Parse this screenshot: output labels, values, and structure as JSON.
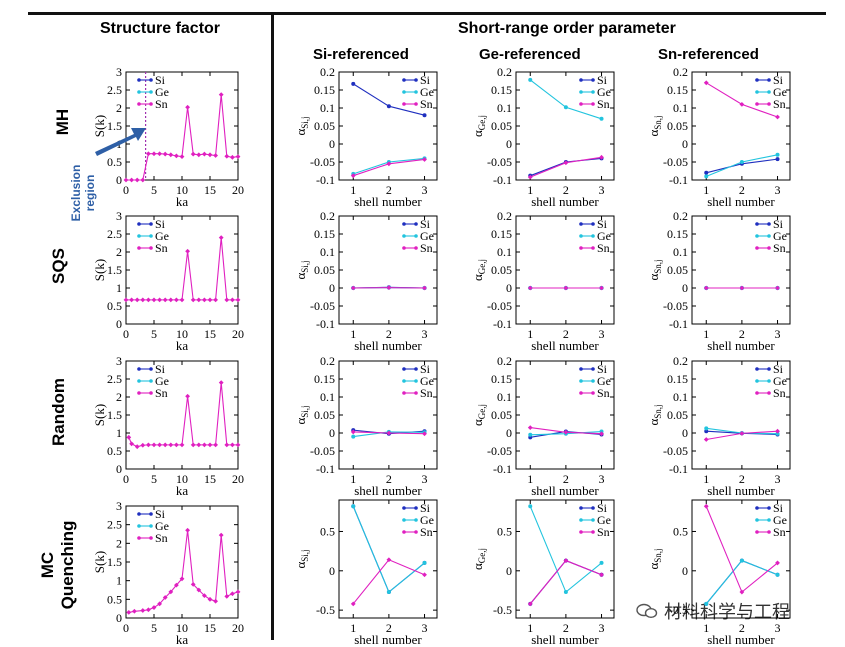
{
  "headers": {
    "structure_factor": "Structure factor",
    "sro": "Short-range order parameter",
    "si_ref": "Si-referenced",
    "ge_ref": "Ge-referenced",
    "sn_ref": "Sn-referenced"
  },
  "rows": [
    "MH",
    "SQS",
    "Random",
    "MC\nQuenching"
  ],
  "exclusion_region": "Exclusion\nregion",
  "watermark": "材料科学与工程",
  "colors": {
    "Si": "#1f2fbf",
    "Ge": "#22c4de",
    "Sn": "#e020c0",
    "exclusion": "#a030b0",
    "arrow": "#2e5fa6"
  },
  "chart_data": [
    {
      "id": "sf-mh",
      "type": "line",
      "xlabel": "ka",
      "ylabel": "S(k)",
      "xlim": [
        0,
        20
      ],
      "ylim": [
        0,
        3
      ],
      "xticks": [
        "0",
        "5",
        "10",
        "15",
        "20"
      ],
      "yticks": [
        "0",
        "0.5",
        "1",
        "1.5",
        "2",
        "2.5",
        "3"
      ],
      "legend": [
        "Si",
        "Ge",
        "Sn"
      ],
      "exclusion_x": 3.5,
      "series": [
        {
          "name": "Sn",
          "x": [
            0,
            1,
            2,
            3,
            4,
            5,
            6,
            7,
            8,
            9,
            10,
            11,
            12,
            13,
            14,
            15,
            16,
            17,
            18,
            19,
            20
          ],
          "y": [
            0,
            0,
            0,
            0,
            0.73,
            0.73,
            0.73,
            0.72,
            0.7,
            0.67,
            0.65,
            2.02,
            0.72,
            0.7,
            0.72,
            0.7,
            0.68,
            2.37,
            0.66,
            0.63,
            0.65
          ]
        }
      ]
    },
    {
      "id": "sf-sqs",
      "type": "line",
      "xlabel": "ka",
      "ylabel": "S(k)",
      "xlim": [
        0,
        20
      ],
      "ylim": [
        0,
        3
      ],
      "xticks": [
        "0",
        "5",
        "10",
        "15",
        "20"
      ],
      "yticks": [
        "0",
        "0.5",
        "1",
        "1.5",
        "2",
        "2.5",
        "3"
      ],
      "legend": [
        "Si",
        "Ge",
        "Sn"
      ],
      "series": [
        {
          "name": "Sn",
          "x": [
            0,
            1,
            2,
            3,
            4,
            5,
            6,
            7,
            8,
            9,
            10,
            11,
            12,
            13,
            14,
            15,
            16,
            17,
            18,
            19,
            20
          ],
          "y": [
            0.67,
            0.67,
            0.67,
            0.67,
            0.67,
            0.67,
            0.67,
            0.67,
            0.67,
            0.67,
            0.67,
            2.02,
            0.67,
            0.67,
            0.67,
            0.67,
            0.67,
            2.4,
            0.67,
            0.67,
            0.67
          ]
        }
      ]
    },
    {
      "id": "sf-random",
      "type": "line",
      "xlabel": "ka",
      "ylabel": "S(k)",
      "xlim": [
        0,
        20
      ],
      "ylim": [
        0,
        3
      ],
      "xticks": [
        "0",
        "5",
        "10",
        "15",
        "20"
      ],
      "yticks": [
        "0",
        "0.5",
        "1",
        "1.5",
        "2",
        "2.5",
        "3"
      ],
      "legend": [
        "Si",
        "Ge",
        "Sn"
      ],
      "series": [
        {
          "name": "Sn",
          "x": [
            0.5,
            1,
            2,
            3,
            4,
            5,
            6,
            7,
            8,
            9,
            10,
            11,
            12,
            13,
            14,
            15,
            16,
            17,
            18,
            19,
            20
          ],
          "y": [
            0.88,
            0.7,
            0.62,
            0.66,
            0.67,
            0.67,
            0.67,
            0.67,
            0.67,
            0.67,
            0.67,
            2.02,
            0.67,
            0.67,
            0.67,
            0.67,
            0.67,
            2.4,
            0.67,
            0.67,
            0.67
          ]
        }
      ]
    },
    {
      "id": "sf-mc",
      "type": "line",
      "xlabel": "ka",
      "ylabel": "S(k)",
      "xlim": [
        0,
        20
      ],
      "ylim": [
        0,
        3
      ],
      "xticks": [
        "0",
        "5",
        "10",
        "15",
        "20"
      ],
      "yticks": [
        "0",
        "0.5",
        "1",
        "1.5",
        "2",
        "2.5",
        "3"
      ],
      "legend": [
        "Si",
        "Ge",
        "Sn"
      ],
      "series": [
        {
          "name": "Sn",
          "x": [
            0.5,
            1.5,
            3,
            4,
            5,
            6,
            7,
            8,
            9,
            10,
            11,
            12,
            13,
            14,
            15,
            16,
            17,
            18,
            19,
            20
          ],
          "y": [
            0.15,
            0.18,
            0.2,
            0.22,
            0.28,
            0.38,
            0.55,
            0.7,
            0.88,
            1.05,
            2.35,
            0.9,
            0.75,
            0.6,
            0.5,
            0.45,
            2.22,
            0.58,
            0.65,
            0.7
          ]
        }
      ]
    },
    {
      "id": "sro-mh-si",
      "type": "line",
      "xlabel": "shell number",
      "ylabel": "α",
      "ysub": "Si,j",
      "xlim": [
        0.6,
        3.35
      ],
      "ylim": [
        -0.1,
        0.2
      ],
      "xticks": [
        "1",
        "2",
        "3"
      ],
      "yticks": [
        "-0.1",
        "-0.05",
        "0",
        "0.05",
        "0.1",
        "0.15",
        "0.2"
      ],
      "legend": [
        "Si",
        "Ge",
        "Sn"
      ],
      "series": [
        {
          "name": "Si",
          "x": [
            1,
            2,
            3
          ],
          "y": [
            0.167,
            0.105,
            0.08
          ]
        },
        {
          "name": "Ge",
          "x": [
            1,
            2,
            3
          ],
          "y": [
            -0.083,
            -0.05,
            -0.04
          ]
        },
        {
          "name": "Sn",
          "x": [
            1,
            2,
            3
          ],
          "y": [
            -0.088,
            -0.055,
            -0.043
          ]
        }
      ]
    },
    {
      "id": "sro-mh-ge",
      "type": "line",
      "xlabel": "shell number",
      "ylabel": "α",
      "ysub": "Ge,j",
      "xlim": [
        0.6,
        3.35
      ],
      "ylim": [
        -0.1,
        0.2
      ],
      "xticks": [
        "1",
        "2",
        "3"
      ],
      "yticks": [
        "-0.1",
        "-0.05",
        "0",
        "0.05",
        "0.1",
        "0.15",
        "0.2"
      ],
      "legend": [
        "Si",
        "Ge",
        "Sn"
      ],
      "series": [
        {
          "name": "Si",
          "x": [
            1,
            2,
            3
          ],
          "y": [
            -0.088,
            -0.05,
            -0.04
          ]
        },
        {
          "name": "Ge",
          "x": [
            1,
            2,
            3
          ],
          "y": [
            0.178,
            0.102,
            0.07
          ]
        },
        {
          "name": "Sn",
          "x": [
            1,
            2,
            3
          ],
          "y": [
            -0.092,
            -0.052,
            -0.037
          ]
        }
      ]
    },
    {
      "id": "sro-mh-sn",
      "type": "line",
      "xlabel": "shell number",
      "ylabel": "α",
      "ysub": "Sn,j",
      "xlim": [
        0.6,
        3.35
      ],
      "ylim": [
        -0.1,
        0.2
      ],
      "xticks": [
        "1",
        "2",
        "3"
      ],
      "yticks": [
        "-0.1",
        "-0.05",
        "0",
        "0.05",
        "0.1",
        "0.15",
        "0.2"
      ],
      "legend": [
        "Si",
        "Ge",
        "Sn"
      ],
      "series": [
        {
          "name": "Si",
          "x": [
            1,
            2,
            3
          ],
          "y": [
            -0.08,
            -0.055,
            -0.042
          ]
        },
        {
          "name": "Ge",
          "x": [
            1,
            2,
            3
          ],
          "y": [
            -0.09,
            -0.05,
            -0.03
          ]
        },
        {
          "name": "Sn",
          "x": [
            1,
            2,
            3
          ],
          "y": [
            0.17,
            0.11,
            0.075
          ]
        }
      ]
    },
    {
      "id": "sro-sqs-si",
      "type": "line",
      "xlabel": "shell number",
      "ylabel": "α",
      "ysub": "Si,j",
      "xlim": [
        0.6,
        3.35
      ],
      "ylim": [
        -0.1,
        0.2
      ],
      "xticks": [
        "1",
        "2",
        "3"
      ],
      "yticks": [
        "-0.1",
        "-0.05",
        "0",
        "0.05",
        "0.1",
        "0.15",
        "0.2"
      ],
      "legend": [
        "Si",
        "Ge",
        "Sn"
      ],
      "series": [
        {
          "name": "Si",
          "x": [
            1,
            2,
            3
          ],
          "y": [
            0,
            0.002,
            0
          ]
        },
        {
          "name": "Ge",
          "x": [
            1,
            2,
            3
          ],
          "y": [
            0,
            0.001,
            0
          ]
        },
        {
          "name": "Sn",
          "x": [
            1,
            2,
            3
          ],
          "y": [
            0,
            0.001,
            0
          ]
        }
      ]
    },
    {
      "id": "sro-sqs-ge",
      "type": "line",
      "xlabel": "shell number",
      "ylabel": "α",
      "ysub": "Ge,j",
      "xlim": [
        0.6,
        3.35
      ],
      "ylim": [
        -0.1,
        0.2
      ],
      "xticks": [
        "1",
        "2",
        "3"
      ],
      "yticks": [
        "-0.1",
        "-0.05",
        "0",
        "0.05",
        "0.1",
        "0.15",
        "0.2"
      ],
      "legend": [
        "Si",
        "Ge",
        "Sn"
      ],
      "series": [
        {
          "name": "Si",
          "x": [
            1,
            2,
            3
          ],
          "y": [
            0,
            0,
            0
          ]
        },
        {
          "name": "Ge",
          "x": [
            1,
            2,
            3
          ],
          "y": [
            0,
            0,
            0
          ]
        },
        {
          "name": "Sn",
          "x": [
            1,
            2,
            3
          ],
          "y": [
            0,
            0,
            0
          ]
        }
      ]
    },
    {
      "id": "sro-sqs-sn",
      "type": "line",
      "xlabel": "shell number",
      "ylabel": "α",
      "ysub": "Sn,j",
      "xlim": [
        0.6,
        3.35
      ],
      "ylim": [
        -0.1,
        0.2
      ],
      "xticks": [
        "1",
        "2",
        "3"
      ],
      "yticks": [
        "-0.1",
        "-0.05",
        "0",
        "0.05",
        "0.1",
        "0.15",
        "0.2"
      ],
      "legend": [
        "Si",
        "Ge",
        "Sn"
      ],
      "series": [
        {
          "name": "Si",
          "x": [
            1,
            2,
            3
          ],
          "y": [
            0,
            0,
            0
          ]
        },
        {
          "name": "Ge",
          "x": [
            1,
            2,
            3
          ],
          "y": [
            0,
            0,
            0
          ]
        },
        {
          "name": "Sn",
          "x": [
            1,
            2,
            3
          ],
          "y": [
            0,
            0,
            0
          ]
        }
      ]
    },
    {
      "id": "sro-rand-si",
      "type": "line",
      "xlabel": "shell number",
      "ylabel": "α",
      "ysub": "Si,j",
      "xlim": [
        0.6,
        3.35
      ],
      "ylim": [
        -0.1,
        0.2
      ],
      "xticks": [
        "1",
        "2",
        "3"
      ],
      "yticks": [
        "-0.1",
        "-0.05",
        "0",
        "0.05",
        "0.1",
        "0.15",
        "0.2"
      ],
      "legend": [
        "Si",
        "Ge",
        "Sn"
      ],
      "series": [
        {
          "name": "Si",
          "x": [
            1,
            2,
            3
          ],
          "y": [
            0.008,
            -0.002,
            0.005
          ]
        },
        {
          "name": "Ge",
          "x": [
            1,
            2,
            3
          ],
          "y": [
            -0.01,
            0.003,
            0.002
          ]
        },
        {
          "name": "Sn",
          "x": [
            1,
            2,
            3
          ],
          "y": [
            0.003,
            0.0,
            -0.002
          ]
        }
      ]
    },
    {
      "id": "sro-rand-ge",
      "type": "line",
      "xlabel": "shell number",
      "ylabel": "α",
      "ysub": "Ge,j",
      "xlim": [
        0.6,
        3.35
      ],
      "ylim": [
        -0.1,
        0.2
      ],
      "xticks": [
        "1",
        "2",
        "3"
      ],
      "yticks": [
        "-0.1",
        "-0.05",
        "0",
        "0.05",
        "0.1",
        "0.15",
        "0.2"
      ],
      "legend": [
        "Si",
        "Ge",
        "Sn"
      ],
      "series": [
        {
          "name": "Si",
          "x": [
            1,
            2,
            3
          ],
          "y": [
            -0.012,
            0.004,
            -0.004
          ]
        },
        {
          "name": "Ge",
          "x": [
            1,
            2,
            3
          ],
          "y": [
            -0.005,
            -0.002,
            0.004
          ]
        },
        {
          "name": "Sn",
          "x": [
            1,
            2,
            3
          ],
          "y": [
            0.015,
            0.002,
            -0.002
          ]
        }
      ]
    },
    {
      "id": "sro-rand-sn",
      "type": "line",
      "xlabel": "shell number",
      "ylabel": "α",
      "ysub": "Sn,j",
      "xlim": [
        0.6,
        3.35
      ],
      "ylim": [
        -0.1,
        0.2
      ],
      "xticks": [
        "1",
        "2",
        "3"
      ],
      "yticks": [
        "-0.1",
        "-0.05",
        "0",
        "0.05",
        "0.1",
        "0.15",
        "0.2"
      ],
      "legend": [
        "Si",
        "Ge",
        "Sn"
      ],
      "series": [
        {
          "name": "Si",
          "x": [
            1,
            2,
            3
          ],
          "y": [
            0.005,
            -0.001,
            -0.004
          ]
        },
        {
          "name": "Ge",
          "x": [
            1,
            2,
            3
          ],
          "y": [
            0.013,
            0.0,
            -0.002
          ]
        },
        {
          "name": "Sn",
          "x": [
            1,
            2,
            3
          ],
          "y": [
            -0.018,
            -0.001,
            0.005
          ]
        }
      ]
    },
    {
      "id": "sro-mc-si",
      "type": "line",
      "xlabel": "shell number",
      "ylabel": "α",
      "ysub": "Si,j",
      "xlim": [
        0.6,
        3.35
      ],
      "ylim": [
        -0.6,
        0.9
      ],
      "xticks": [
        "1",
        "2",
        "3"
      ],
      "yticks": [
        "-0.5",
        "0",
        "0.5"
      ],
      "legend": [
        "Si",
        "Ge",
        "Sn"
      ],
      "series": [
        {
          "name": "Si",
          "x": [
            1,
            2,
            3
          ],
          "y": [
            0.82,
            -0.27,
            0.1
          ]
        },
        {
          "name": "Ge",
          "x": [
            1,
            2,
            3
          ],
          "y": [
            0.82,
            -0.27,
            0.1
          ]
        },
        {
          "name": "Sn",
          "x": [
            1,
            2,
            3
          ],
          "y": [
            -0.42,
            0.14,
            -0.05
          ]
        }
      ]
    },
    {
      "id": "sro-mc-ge",
      "type": "line",
      "xlabel": "shell number",
      "ylabel": "α",
      "ysub": "Ge,j",
      "xlim": [
        0.6,
        3.35
      ],
      "ylim": [
        -0.6,
        0.9
      ],
      "xticks": [
        "1",
        "2",
        "3"
      ],
      "yticks": [
        "-0.5",
        "0",
        "0.5"
      ],
      "legend": [
        "Si",
        "Ge",
        "Sn"
      ],
      "series": [
        {
          "name": "Si",
          "x": [
            1,
            2,
            3
          ],
          "y": [
            -0.42,
            0.13,
            -0.05
          ]
        },
        {
          "name": "Ge",
          "x": [
            1,
            2,
            3
          ],
          "y": [
            0.82,
            -0.27,
            0.1
          ]
        },
        {
          "name": "Sn",
          "x": [
            1,
            2,
            3
          ],
          "y": [
            -0.42,
            0.13,
            -0.05
          ]
        }
      ]
    },
    {
      "id": "sro-mc-sn",
      "type": "line",
      "xlabel": "shell number",
      "ylabel": "α",
      "ysub": "Sn,j",
      "xlim": [
        0.6,
        3.35
      ],
      "ylim": [
        -0.6,
        0.9
      ],
      "xticks": [
        "1",
        "2",
        "3"
      ],
      "yticks": [
        "-0.5",
        "0",
        "0.5"
      ],
      "legend": [
        "Si",
        "Ge",
        "Sn"
      ],
      "series": [
        {
          "name": "Si",
          "x": [
            1,
            2,
            3
          ],
          "y": [
            -0.42,
            0.13,
            -0.05
          ]
        },
        {
          "name": "Ge",
          "x": [
            1,
            2,
            3
          ],
          "y": [
            -0.42,
            0.13,
            -0.05
          ]
        },
        {
          "name": "Sn",
          "x": [
            1,
            2,
            3
          ],
          "y": [
            0.82,
            -0.27,
            0.1
          ]
        }
      ]
    }
  ]
}
